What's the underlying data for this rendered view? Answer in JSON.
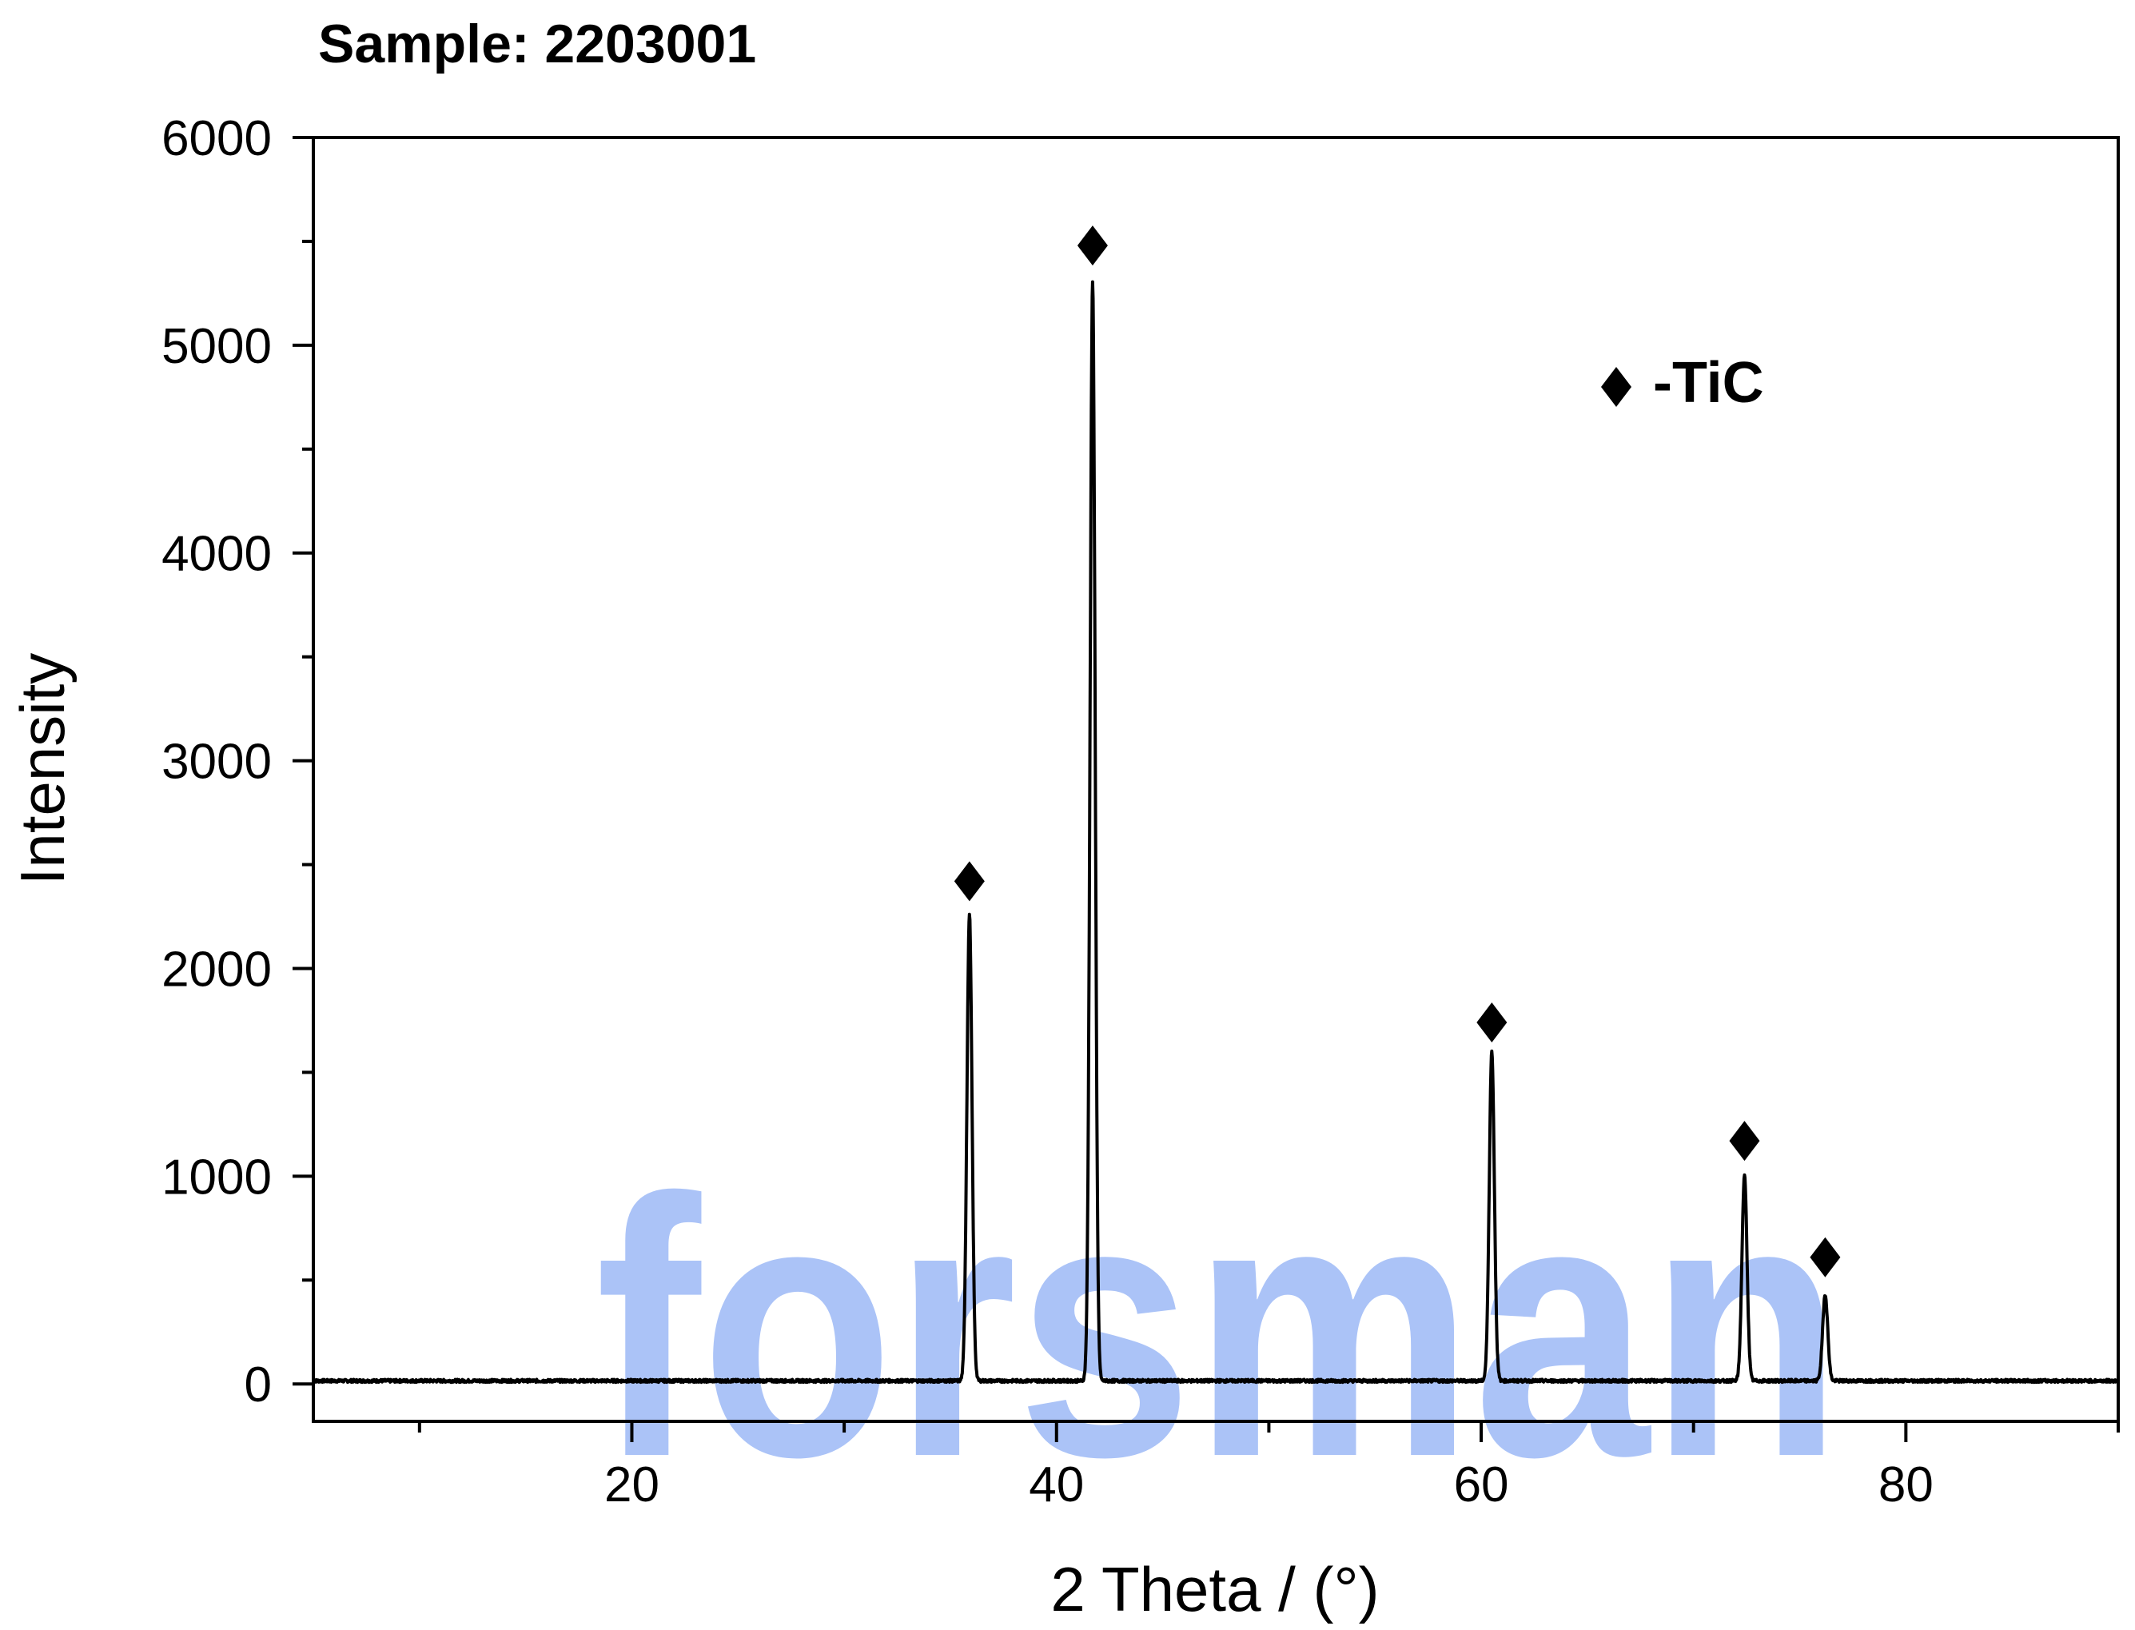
{
  "chart_data": {
    "type": "line",
    "title": "Sample: 2203001",
    "xlabel": "2 Theta / (°)",
    "ylabel": "Intensity",
    "xlim": [
      5,
      90
    ],
    "ylim": [
      -180,
      6000
    ],
    "x_ticks": [
      20,
      40,
      60,
      80
    ],
    "x_minor_ticks": [
      10,
      30,
      50,
      70,
      90
    ],
    "y_ticks": [
      0,
      1000,
      2000,
      3000,
      4000,
      5000,
      6000
    ],
    "y_minor_ticks": [
      500,
      1500,
      2500,
      3500,
      4500,
      5500
    ],
    "grid": false,
    "line_color": "#000000",
    "baseline": 15,
    "peaks": [
      {
        "x": 35.9,
        "y": 2260
      },
      {
        "x": 41.7,
        "y": 5300
      },
      {
        "x": 60.5,
        "y": 1600
      },
      {
        "x": 72.4,
        "y": 1000
      },
      {
        "x": 76.2,
        "y": 430
      }
    ],
    "markers": [
      {
        "x": 35.9,
        "y": 2420
      },
      {
        "x": 41.7,
        "y": 5480
      },
      {
        "x": 60.5,
        "y": 1740
      },
      {
        "x": 72.4,
        "y": 1170
      },
      {
        "x": 76.2,
        "y": 610
      }
    ],
    "legend": {
      "symbol": "diamond",
      "label": "-TiC",
      "placement": "top-right"
    }
  },
  "watermark": {
    "text": "forsman",
    "color": "#8fb0f5"
  }
}
